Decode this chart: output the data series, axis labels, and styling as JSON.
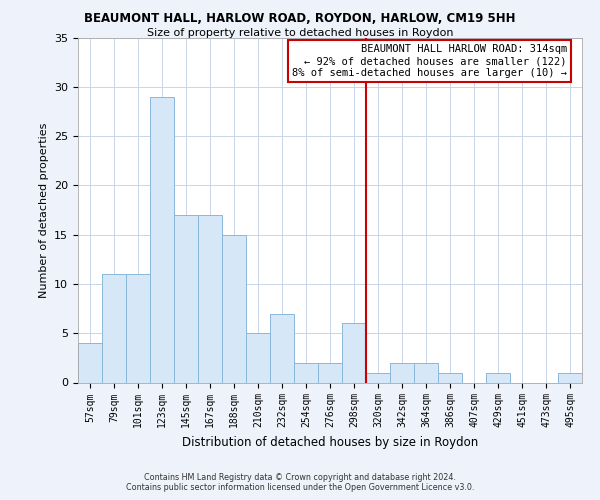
{
  "title": "BEAUMONT HALL, HARLOW ROAD, ROYDON, HARLOW, CM19 5HH",
  "subtitle": "Size of property relative to detached houses in Roydon",
  "xlabel": "Distribution of detached houses by size in Roydon",
  "ylabel": "Number of detached properties",
  "bin_labels": [
    "57sqm",
    "79sqm",
    "101sqm",
    "123sqm",
    "145sqm",
    "167sqm",
    "188sqm",
    "210sqm",
    "232sqm",
    "254sqm",
    "276sqm",
    "298sqm",
    "320sqm",
    "342sqm",
    "364sqm",
    "386sqm",
    "407sqm",
    "429sqm",
    "451sqm",
    "473sqm",
    "495sqm"
  ],
  "bar_heights": [
    4,
    11,
    11,
    29,
    17,
    17,
    15,
    5,
    7,
    2,
    2,
    6,
    1,
    2,
    2,
    1,
    0,
    1,
    0,
    0,
    1
  ],
  "bar_color": "#d6e8f7",
  "bar_edge_color": "#8ab8d8",
  "marker_bin_index": 12,
  "marker_label": "BEAUMONT HALL HARLOW ROAD: 314sqm",
  "annotation_line1": "← 92% of detached houses are smaller (122)",
  "annotation_line2": "8% of semi-detached houses are larger (10) →",
  "marker_color": "#cc0000",
  "ylim": [
    0,
    35
  ],
  "yticks": [
    0,
    5,
    10,
    15,
    20,
    25,
    30,
    35
  ],
  "footer_line1": "Contains HM Land Registry data © Crown copyright and database right 2024.",
  "footer_line2": "Contains public sector information licensed under the Open Government Licence v3.0.",
  "background_color": "#eef2fb",
  "plot_background": "#ffffff",
  "grid_color": "#c8d4e8"
}
